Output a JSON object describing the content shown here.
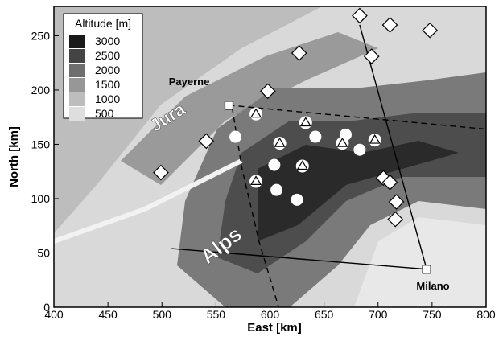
{
  "chart_data": {
    "type": "map",
    "xlabel": "East [km]",
    "ylabel": "North [km]",
    "xlim": [
      400,
      800
    ],
    "ylim": [
      0,
      277
    ],
    "xticks": [
      400,
      450,
      500,
      550,
      600,
      650,
      700,
      750,
      800
    ],
    "yticks": [
      0,
      50,
      100,
      150,
      200,
      250
    ],
    "legend": {
      "title": "Altitude [m]",
      "levels": [
        3000,
        2500,
        2000,
        1500,
        1000,
        500
      ],
      "colors": [
        "#1a1a1a",
        "#444444",
        "#6e6e6e",
        "#979797",
        "#bdbdbd",
        "#dedede"
      ]
    },
    "markers": [
      {
        "shape": "diamond",
        "x": [
          683,
          711,
          748,
          694,
          627,
          598,
          541,
          499,
          705,
          711,
          717,
          716
        ],
        "y": [
          268.5,
          260,
          255,
          231,
          234,
          199,
          153,
          124,
          119,
          115,
          97,
          81
        ]
      },
      {
        "shape": "circle",
        "x": [
          568,
          670,
          642,
          683,
          604,
          606,
          625
        ],
        "y": [
          157,
          159,
          157,
          145,
          131,
          108,
          99
        ]
      },
      {
        "shape": "triangle",
        "x": [
          587,
          633,
          609,
          667,
          697,
          630,
          587
        ],
        "y": [
          178,
          170,
          151,
          151,
          154,
          130,
          116
        ]
      },
      {
        "shape": "square",
        "x": [
          562,
          745
        ],
        "y": [
          186,
          35
        ]
      }
    ],
    "lines": [
      {
        "style": "solid",
        "x": [
          745,
          683
        ],
        "y": [
          35,
          260
        ]
      },
      {
        "style": "solid",
        "x": [
          745,
          509
        ],
        "y": [
          35,
          54
        ]
      },
      {
        "style": "dashed",
        "x": [
          562,
          800
        ],
        "y": [
          186,
          164
        ]
      },
      {
        "style": "dashed",
        "x": [
          565,
          574,
          590,
          608
        ],
        "y": [
          184,
          128,
          60,
          0
        ]
      }
    ],
    "annotations": [
      "Payerne",
      "Milano",
      "Jura",
      "Alps"
    ]
  }
}
